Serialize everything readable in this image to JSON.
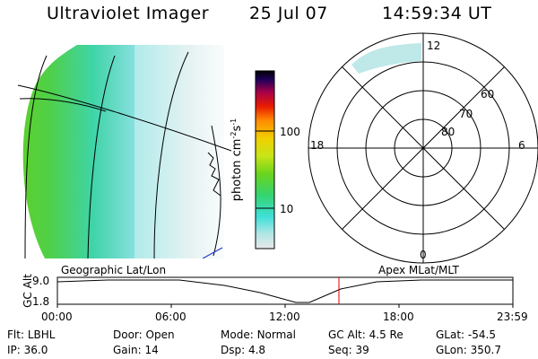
{
  "header": {
    "instrument": "Ultraviolet Imager",
    "date": "25 Jul 07",
    "time": "14:59:34 UT"
  },
  "colorbar": {
    "unit": "photon cm",
    "unit_sup1": "-2",
    "unit_s": "s",
    "unit_sup2": "-1",
    "tick_100": "100",
    "tick_10": "10",
    "stops": [
      "#e8e8e8",
      "#b4e6e6",
      "#3fe0d8",
      "#34d470",
      "#6ad41e",
      "#c8e418",
      "#f0d000",
      "#ff8c00",
      "#e81c00",
      "#a8004a",
      "#20005a",
      "#000000"
    ]
  },
  "polar": {
    "mlt_top": "12",
    "mlt_left": "18",
    "mlt_right": "6",
    "mlt_bottom": "0",
    "lat_60": "60",
    "lat_70": "70",
    "lat_80": "80"
  },
  "orbit": {
    "left_title": "Geographic Lat/Lon",
    "right_title": "Apex MLat/MLT",
    "ylabel": "GC Alt",
    "y_top": "9.0",
    "y_bottom": "1.8",
    "times": [
      "00:00",
      "06:00",
      "12:00",
      "18:00",
      "23:59"
    ],
    "marker_color": "#e00000"
  },
  "status": {
    "flt_label": "Flt:",
    "flt_value": "LBHL",
    "door_label": "Door:",
    "door_value": "Open",
    "mode_label": "Mode:",
    "mode_value": "Normal",
    "gcalt_label": "GC Alt:",
    "gcalt_value": "4.5 Re",
    "glat_label": "GLat:",
    "glat_value": "-54.5",
    "ip_label": "IP:",
    "ip_value": "36.0",
    "gain_label": "Gain:",
    "gain_value": "14",
    "dsp_label": "Dsp:",
    "dsp_value": "4.8",
    "seq_label": "Seq:",
    "seq_value": "39",
    "glon_label": "GLon:",
    "glon_value": "350.7"
  }
}
